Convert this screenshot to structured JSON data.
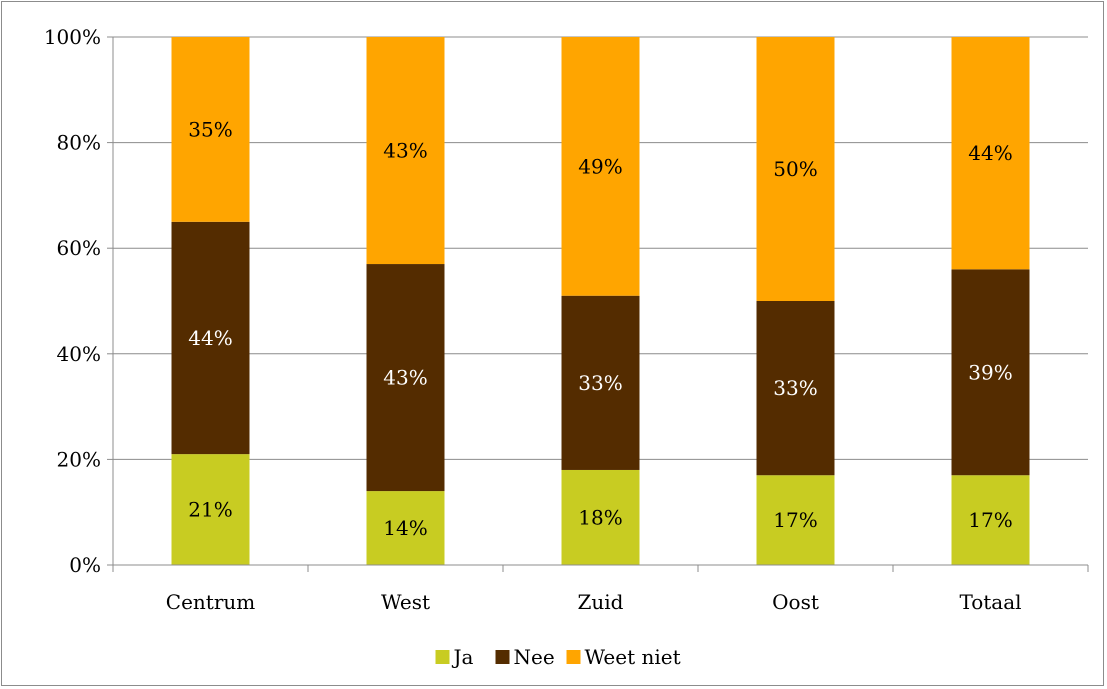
{
  "chart_data": {
    "type": "bar",
    "stacked": "percent",
    "categories": [
      "Centrum",
      "West",
      "Zuid",
      "Oost",
      "Totaal"
    ],
    "series": [
      {
        "name": "Ja",
        "color": "#c8cc22",
        "values": [
          21,
          14,
          18,
          17,
          17
        ],
        "labels": [
          "21%",
          "14%",
          "18%",
          "17%",
          "17%"
        ],
        "label_color": "#000000"
      },
      {
        "name": "Nee",
        "color": "#542c00",
        "values": [
          44,
          43,
          33,
          33,
          39
        ],
        "labels": [
          "44%",
          "43%",
          "33%",
          "33%",
          "39%"
        ],
        "label_color": "#ffffff"
      },
      {
        "name": "Weet niet",
        "color": "#ffa500",
        "values": [
          35,
          43,
          49,
          50,
          44
        ],
        "labels": [
          "35%",
          "43%",
          "49%",
          "50%",
          "44%"
        ],
        "label_color": "#000000"
      }
    ],
    "yticks": [
      "0%",
      "20%",
      "40%",
      "60%",
      "80%",
      "100%"
    ],
    "ylim": [
      0,
      100
    ],
    "grid": true,
    "legend": "bottom"
  }
}
